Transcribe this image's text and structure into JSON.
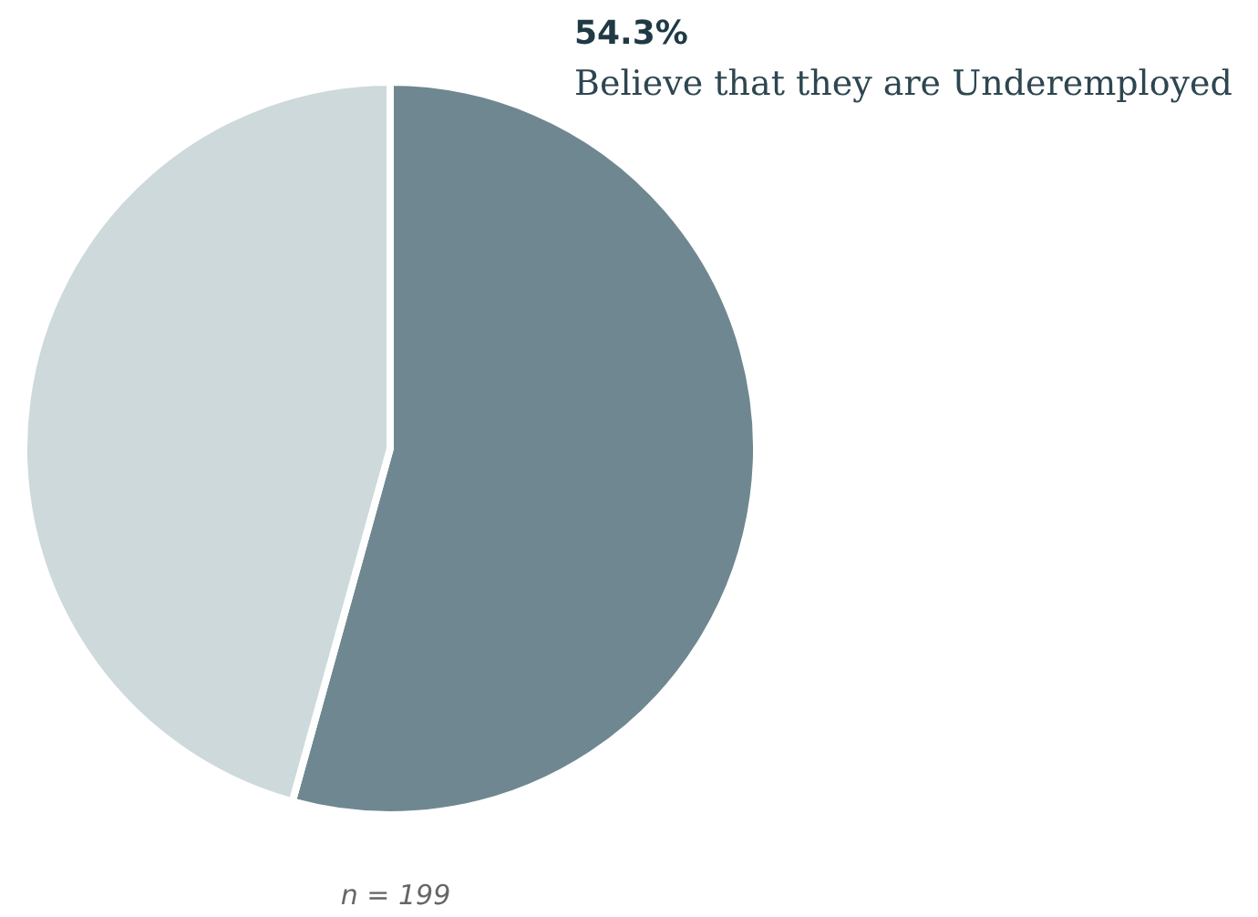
{
  "chart_data": {
    "type": "pie",
    "categories": [
      "Believe that they are Underemployed",
      null
    ],
    "values": [
      54.3,
      45.7
    ],
    "colors": [
      "#6f8790",
      "#cdd9db"
    ],
    "value_labels": [
      "54.3%",
      null
    ],
    "annotations": [
      "n = 199"
    ]
  }
}
